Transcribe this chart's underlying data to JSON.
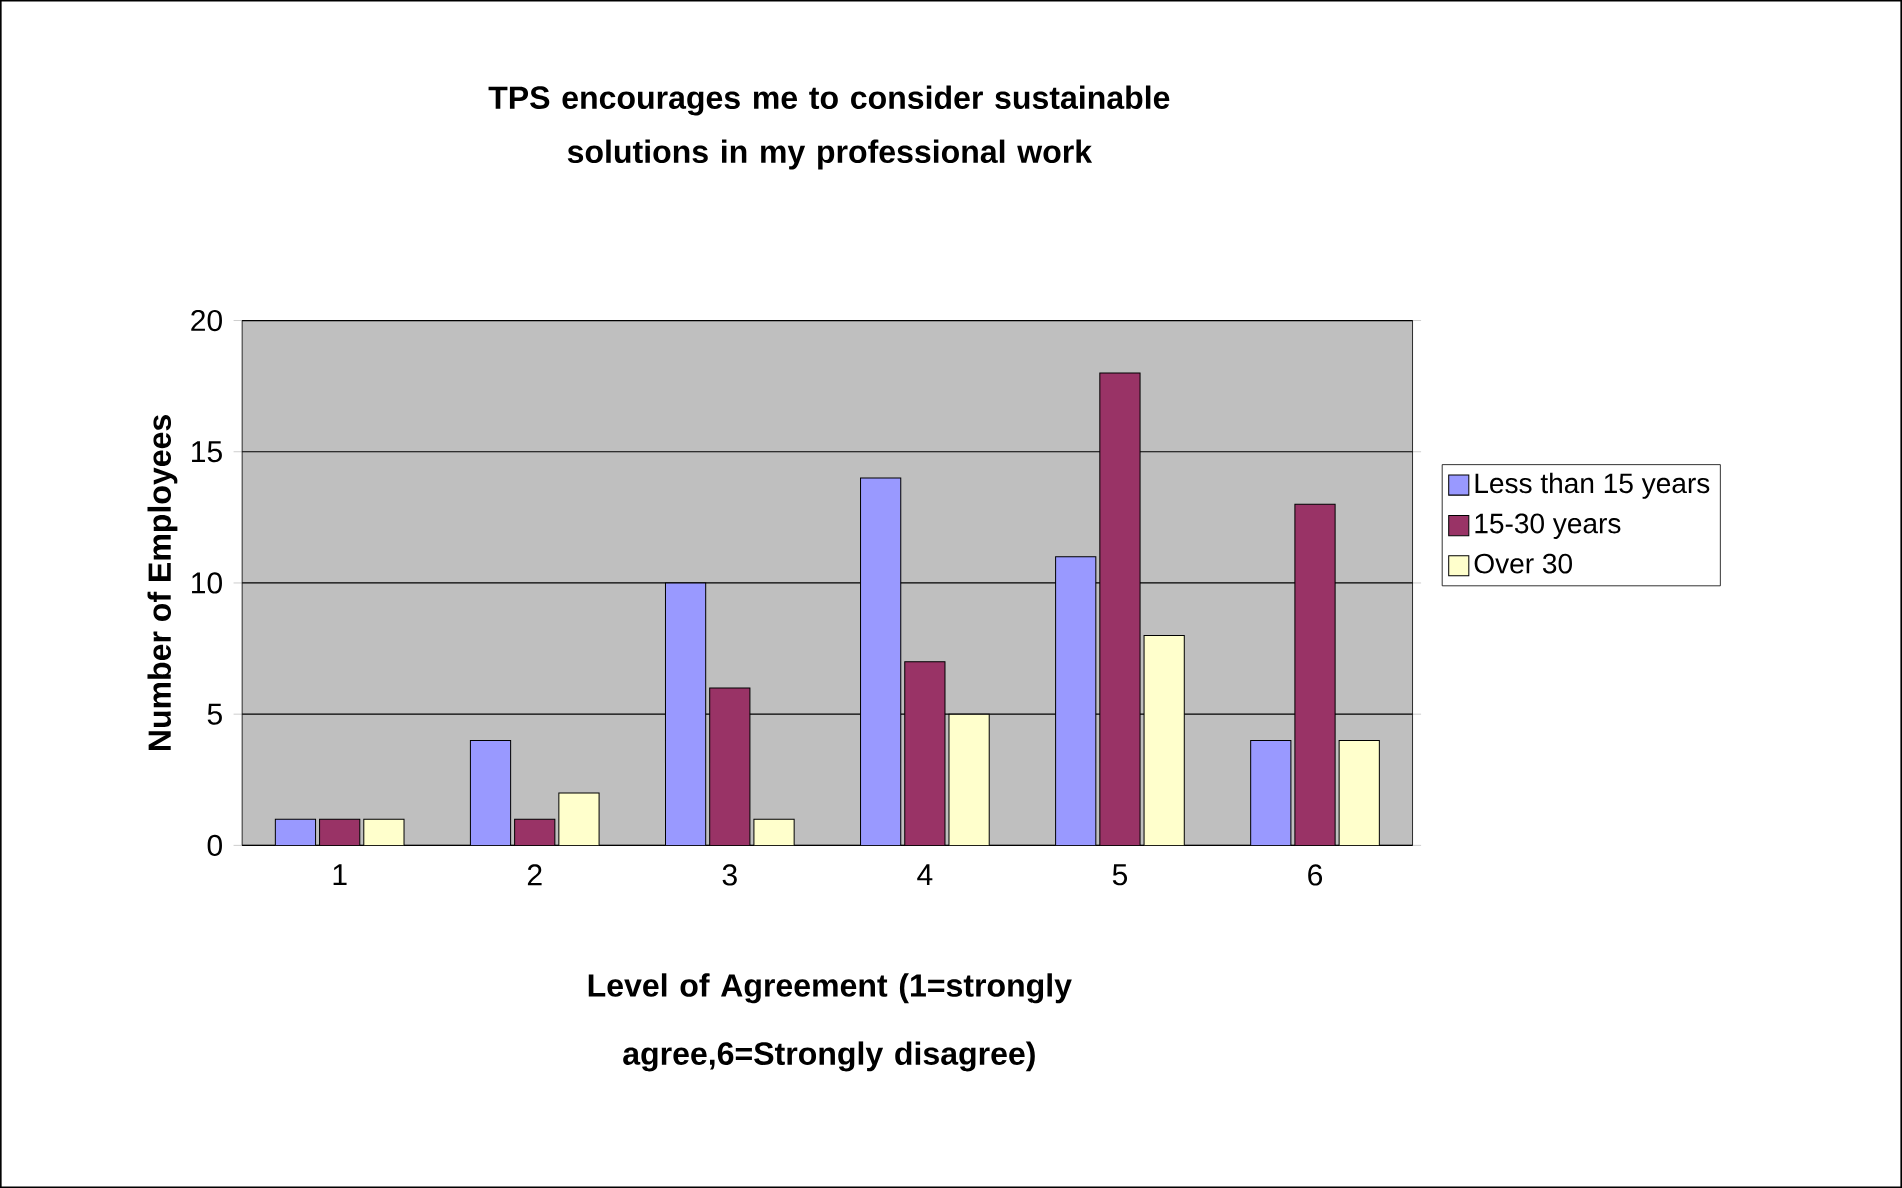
{
  "chart_data": {
    "type": "bar",
    "title": "TPS encourages me to consider sustainable solutions in my professional work",
    "xlabel": "Level of Agreement (1=strongly agree,6=Strongly disagree)",
    "ylabel": "Number of Employees",
    "categories": [
      "1",
      "2",
      "3",
      "4",
      "5",
      "6"
    ],
    "series": [
      {
        "name": "Less than 15 years",
        "color": "#9999ff",
        "values": [
          1,
          4,
          10,
          14,
          11,
          4
        ]
      },
      {
        "name": "15-30 years",
        "color": "#993366",
        "values": [
          1,
          1,
          6,
          7,
          18,
          13
        ]
      },
      {
        "name": "Over 30",
        "color": "#ffffcc",
        "values": [
          1,
          2,
          1,
          5,
          8,
          4
        ]
      }
    ],
    "ylim": [
      0,
      20
    ],
    "yticks": [
      0,
      5,
      10,
      15,
      20
    ],
    "grid": "y",
    "legend": "right"
  }
}
